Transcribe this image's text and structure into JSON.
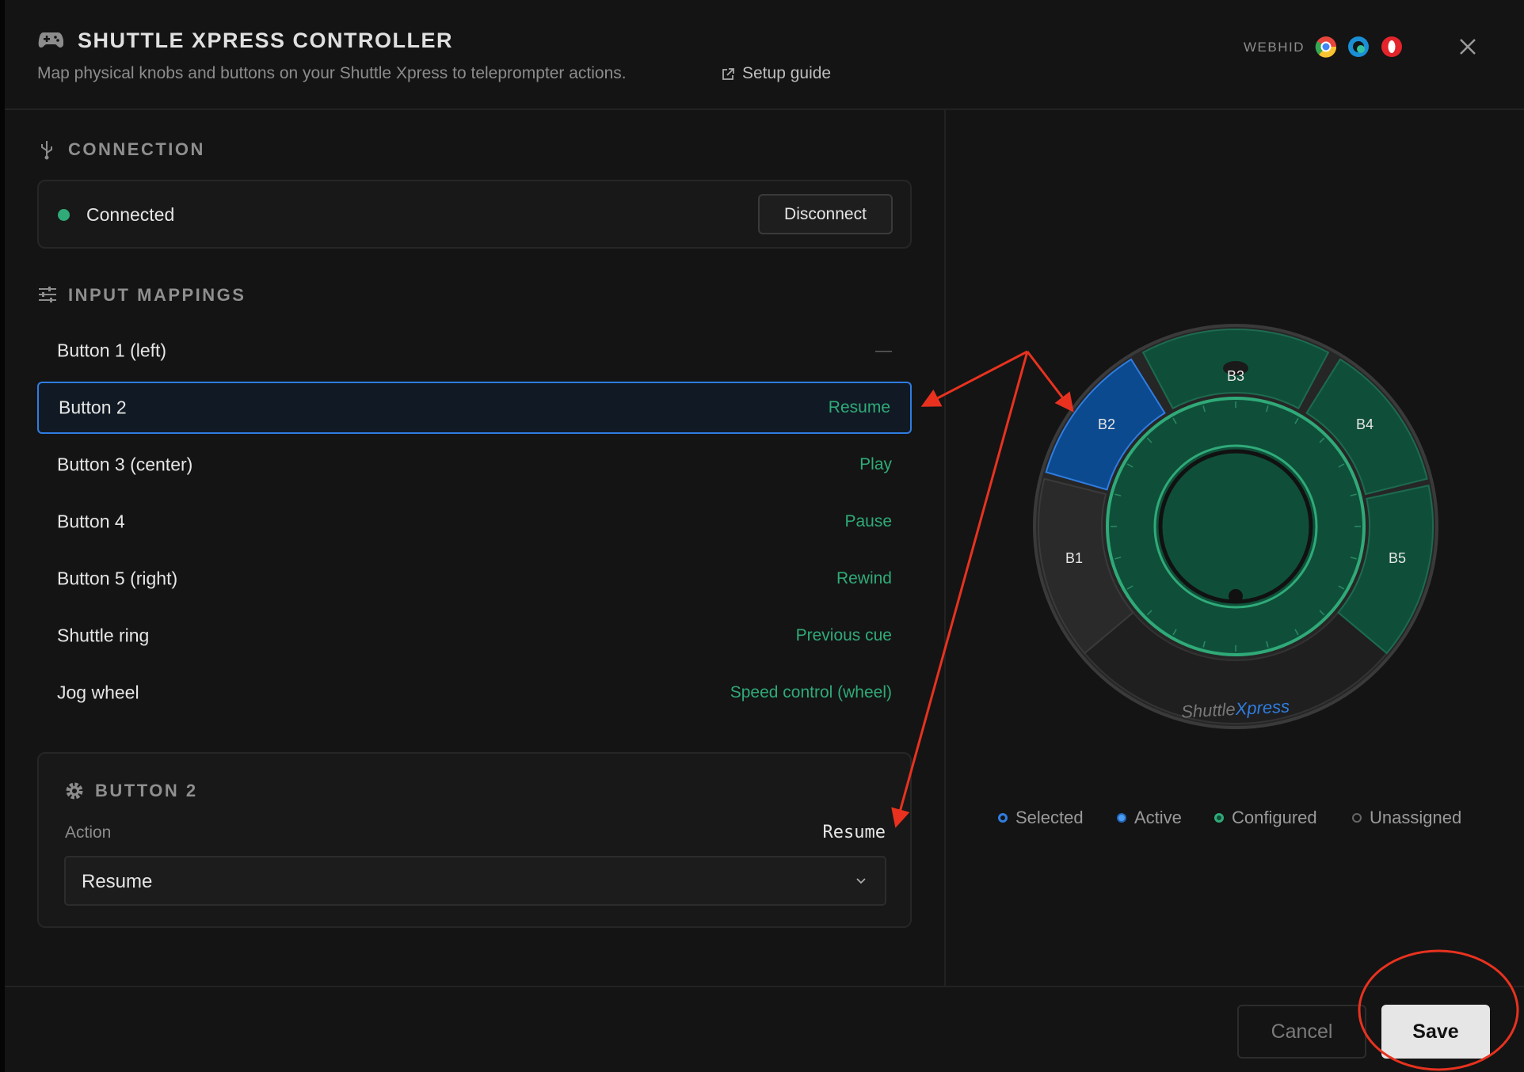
{
  "header": {
    "title": "SHUTTLE XPRESS CONTROLLER",
    "subtitle": "Map physical knobs and buttons on your Shuttle Xpress to teleprompter actions.",
    "guide_link": "Setup guide",
    "badge": "WEBHID"
  },
  "connection": {
    "heading": "CONNECTION",
    "status": "Connected",
    "button": "Disconnect"
  },
  "mappings": {
    "heading": "INPUT MAPPINGS",
    "rows": [
      {
        "label": "Button 1 (left)",
        "action": "—"
      },
      {
        "label": "Button 2",
        "action": "Resume"
      },
      {
        "label": "Button 3 (center)",
        "action": "Play"
      },
      {
        "label": "Button 4",
        "action": "Pause"
      },
      {
        "label": "Button 5 (right)",
        "action": "Rewind"
      },
      {
        "label": "Shuttle ring",
        "action": "Previous cue"
      },
      {
        "label": "Jog wheel",
        "action": "Speed control (wheel)"
      }
    ]
  },
  "detail": {
    "heading": "BUTTON 2",
    "field_label": "Action",
    "current": "Resume",
    "select_value": "Resume"
  },
  "device": {
    "buttons": [
      "B1",
      "B2",
      "B3",
      "B4",
      "B5"
    ],
    "brand_a": "Shuttle",
    "brand_b": "Xpress"
  },
  "legend": [
    "Selected",
    "Active",
    "Configured",
    "Unassigned"
  ],
  "footer": {
    "cancel": "Cancel",
    "save": "Save"
  }
}
